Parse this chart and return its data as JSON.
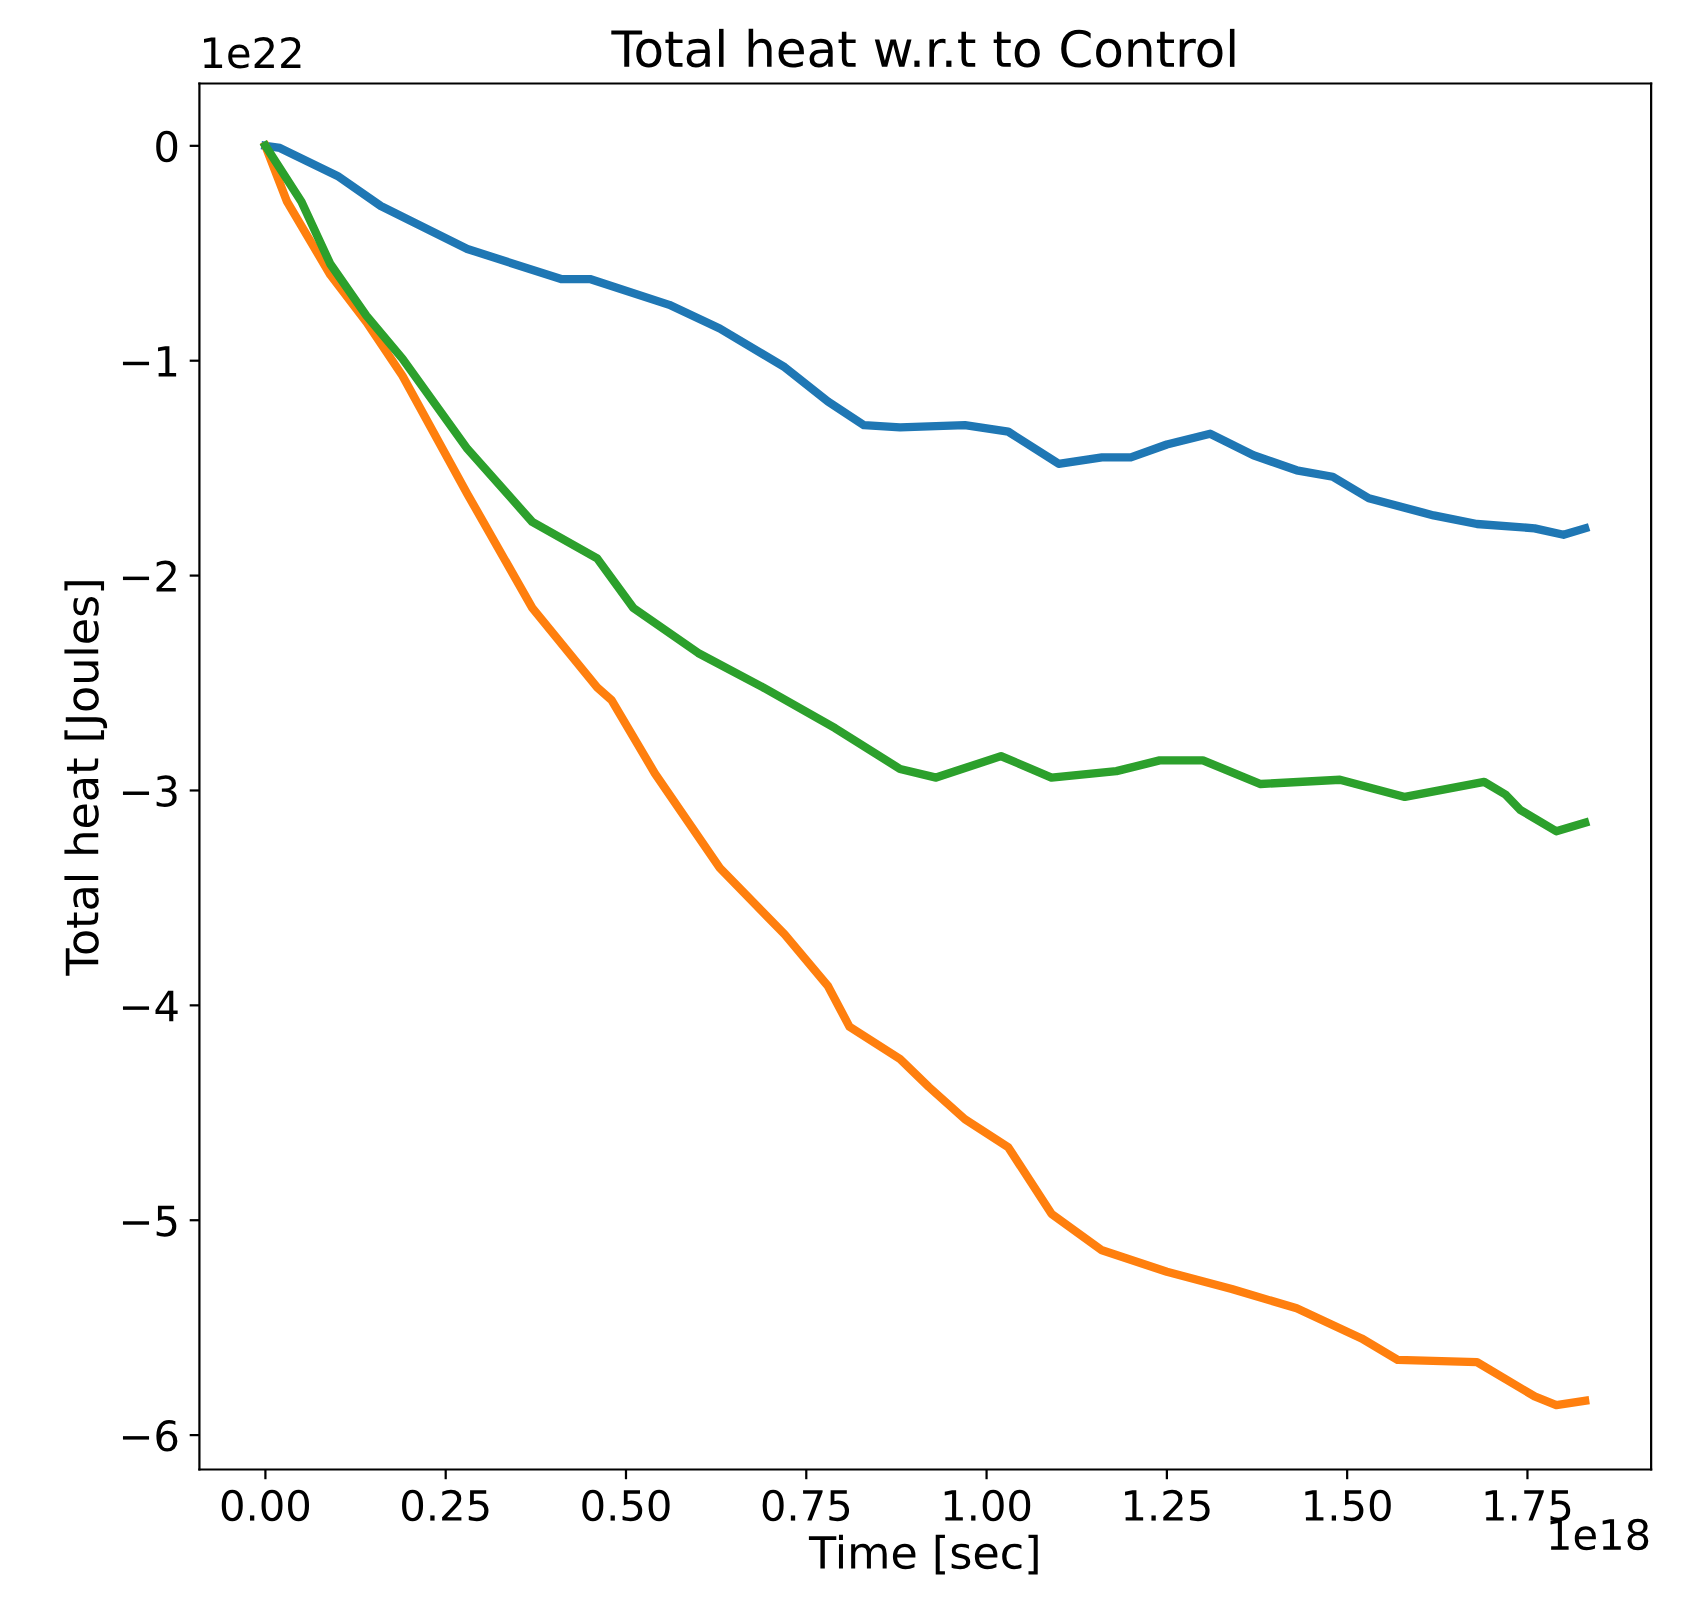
{
  "chart_data": {
    "type": "line",
    "title": "Total heat w.r.t to Control",
    "xlabel": "Time [sec]",
    "ylabel": "Total heat [Joules]",
    "annotations": [
      "1e22",
      "1e18"
    ],
    "xlim": [
      -0.0915,
      1.9215
    ],
    "ylim": [
      -6.16,
      0.29
    ],
    "xticks": [
      {
        "value": 0,
        "label": "0.00"
      },
      {
        "value": 0.25,
        "label": "0.25"
      },
      {
        "value": 0.5,
        "label": "0.50"
      },
      {
        "value": 0.75,
        "label": "0.75"
      },
      {
        "value": 1.0,
        "label": "1.00"
      },
      {
        "value": 1.25,
        "label": "1.25"
      },
      {
        "value": 1.5,
        "label": "1.50"
      },
      {
        "value": 1.75,
        "label": "1.75"
      }
    ],
    "yticks": [
      {
        "value": 0,
        "label": "0"
      },
      {
        "value": -1,
        "label": "−1"
      },
      {
        "value": -2,
        "label": "−2"
      },
      {
        "value": -3,
        "label": "−3"
      },
      {
        "value": -4,
        "label": "−4"
      },
      {
        "value": -5,
        "label": "−5"
      },
      {
        "value": -6,
        "label": "−6"
      }
    ],
    "grid": false,
    "marker": "none",
    "line_style": "solid",
    "series": [
      {
        "color": "#1f77b4",
        "x": [
          0,
          0.02,
          0.1,
          0.16,
          0.28,
          0.41,
          0.45,
          0.56,
          0.63,
          0.72,
          0.78,
          0.83,
          0.88,
          0.97,
          1.03,
          1.1,
          1.16,
          1.2,
          1.25,
          1.31,
          1.37,
          1.43,
          1.48,
          1.53,
          1.62,
          1.68,
          1.76,
          1.8,
          1.83
        ],
        "values": [
          0,
          -0.01,
          -0.14,
          -0.28,
          -0.48,
          -0.62,
          -0.62,
          -0.74,
          -0.85,
          -1.03,
          -1.19,
          -1.3,
          -1.31,
          -1.3,
          -1.33,
          -1.48,
          -1.45,
          -1.45,
          -1.39,
          -1.34,
          -1.44,
          -1.51,
          -1.54,
          -1.64,
          -1.72,
          -1.76,
          -1.78,
          -1.81,
          -1.78
        ]
      },
      {
        "color": "#ff7f0e",
        "x": [
          0,
          0.03,
          0.09,
          0.14,
          0.19,
          0.28,
          0.37,
          0.46,
          0.48,
          0.54,
          0.63,
          0.72,
          0.78,
          0.81,
          0.88,
          0.92,
          0.97,
          1.03,
          1.09,
          1.16,
          1.25,
          1.34,
          1.43,
          1.52,
          1.57,
          1.68,
          1.76,
          1.79,
          1.83
        ],
        "values": [
          0,
          -0.26,
          -0.6,
          -0.82,
          -1.07,
          -1.62,
          -2.15,
          -2.52,
          -2.58,
          -2.92,
          -3.36,
          -3.67,
          -3.91,
          -4.1,
          -4.25,
          -4.38,
          -4.53,
          -4.66,
          -4.97,
          -5.14,
          -5.24,
          -5.32,
          -5.41,
          -5.55,
          -5.65,
          -5.66,
          -5.82,
          -5.86,
          -5.84
        ]
      },
      {
        "color": "#2ca02c",
        "x": [
          0,
          0.05,
          0.09,
          0.14,
          0.19,
          0.28,
          0.37,
          0.46,
          0.51,
          0.6,
          0.69,
          0.79,
          0.88,
          0.93,
          1.02,
          1.09,
          1.18,
          1.24,
          1.3,
          1.38,
          1.49,
          1.58,
          1.69,
          1.72,
          1.74,
          1.79,
          1.83
        ],
        "values": [
          0,
          -0.26,
          -0.55,
          -0.79,
          -0.99,
          -1.41,
          -1.75,
          -1.92,
          -2.15,
          -2.36,
          -2.52,
          -2.71,
          -2.9,
          -2.94,
          -2.84,
          -2.94,
          -2.91,
          -2.86,
          -2.86,
          -2.97,
          -2.95,
          -3.03,
          -2.96,
          -3.02,
          -3.09,
          -3.19,
          -3.15
        ]
      }
    ]
  }
}
